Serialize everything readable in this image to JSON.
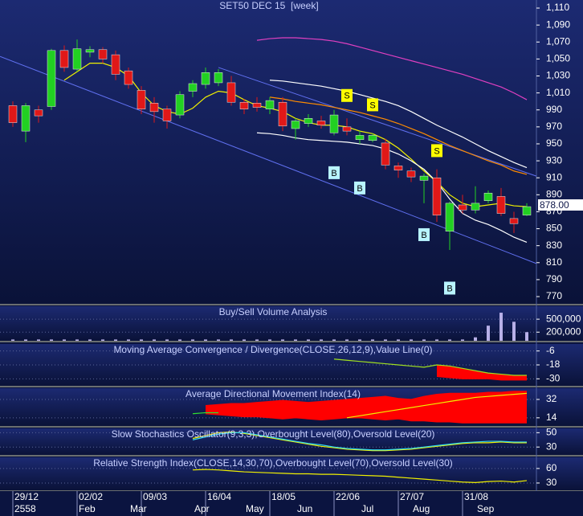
{
  "chart_data": [
    {
      "type": "candlestick",
      "title": "SET50 DEC 15  [week]",
      "categories": [
        "29/12",
        null,
        null,
        null,
        null,
        "02/02",
        null,
        null,
        null,
        null,
        "09/03",
        null,
        null,
        null,
        null,
        "16/04",
        null,
        null,
        null,
        null,
        "18/05",
        null,
        null,
        null,
        null,
        "22/06",
        null,
        null,
        null,
        null,
        "27/07",
        null,
        null,
        null,
        null,
        "31/08",
        null,
        null,
        null,
        null,
        null
      ],
      "months": [
        "2558",
        null,
        null,
        null,
        null,
        "Feb",
        null,
        null,
        null,
        "Mar",
        null,
        null,
        null,
        null,
        "Apr",
        null,
        null,
        null,
        "May",
        null,
        null,
        null,
        "Jun",
        null,
        null,
        null,
        null,
        "Jul",
        null,
        null,
        null,
        "Aug",
        null,
        null,
        null,
        null,
        "Sep",
        null,
        null,
        null,
        null
      ],
      "open": [
        995,
        965,
        990,
        994,
        1060,
        1038,
        1058,
        1061,
        1055,
        1036,
        1013,
        998,
        991,
        984,
        1012,
        1020,
        1022,
        1022,
        999,
        998,
        991,
        999,
        968,
        974,
        977,
        963,
        970,
        955,
        954,
        951,
        924,
        918,
        907,
        910,
        847,
        878,
        872,
        883,
        888,
        862,
        866
      ],
      "high": [
        1000,
        998,
        995,
        1062,
        1066,
        1073,
        1065,
        1064,
        1060,
        1040,
        1018,
        1005,
        995,
        1012,
        1025,
        1040,
        1038,
        1030,
        1003,
        1005,
        1005,
        1005,
        980,
        985,
        983,
        990,
        980,
        965,
        962,
        956,
        928,
        922,
        915,
        920,
        882,
        890,
        900,
        895,
        898,
        870,
        880
      ],
      "low": [
        970,
        952,
        975,
        990,
        1035,
        1035,
        1052,
        1045,
        1025,
        1015,
        985,
        975,
        968,
        980,
        1005,
        1015,
        1018,
        995,
        985,
        988,
        985,
        965,
        955,
        970,
        968,
        960,
        960,
        950,
        952,
        920,
        910,
        905,
        880,
        858,
        825,
        868,
        868,
        880,
        865,
        845,
        865
      ],
      "close": [
        975,
        995,
        983,
        1060,
        1040,
        1062,
        1061,
        1050,
        1032,
        1020,
        991,
        988,
        977,
        1008,
        1021,
        1034,
        1034,
        999,
        991,
        993,
        1001,
        971,
        977,
        980,
        972,
        984,
        965,
        960,
        960,
        925,
        919,
        911,
        912,
        866,
        880,
        872,
        880,
        892,
        868,
        856,
        876
      ],
      "up_color": "#22d022",
      "down_color": "#e01818",
      "ylim": [
        761.5,
        1119.5
      ],
      "yticks": [
        {
          "value": 1110,
          "label": "1,110"
        },
        {
          "value": 1090,
          "label": "1,090"
        },
        {
          "value": 1070,
          "label": "1,070"
        },
        {
          "value": 1050,
          "label": "1,050"
        },
        {
          "value": 1030,
          "label": "1,030"
        },
        {
          "value": 1010,
          "label": "1,010"
        },
        990,
        970,
        950,
        930,
        910,
        890,
        870,
        850,
        830,
        810,
        790,
        770
      ],
      "current": {
        "value": 878,
        "label": "878.00"
      },
      "series": [
        {
          "color": "#f0f000",
          "values": [
            null,
            null,
            null,
            null,
            1025,
            1035,
            1045,
            1045,
            1040,
            1030,
            1010,
            995,
            988,
            985,
            992,
            1005,
            1012,
            1010,
            1002,
            995,
            992,
            988,
            980,
            975,
            972,
            972,
            970,
            965,
            962,
            955,
            945,
            932,
            918,
            905,
            890,
            880,
            876,
            878,
            880,
            877,
            876
          ]
        },
        {
          "color": "#e040c0",
          "values": [
            null,
            null,
            null,
            null,
            null,
            null,
            null,
            null,
            null,
            null,
            null,
            null,
            null,
            null,
            null,
            null,
            null,
            null,
            null,
            1072,
            1074,
            1075,
            1075,
            1074,
            1073,
            1071,
            1068,
            1064,
            1060,
            1056,
            1052,
            1048,
            1044,
            1040,
            1036,
            1032,
            1027,
            1022,
            1017,
            1010,
            1002
          ]
        },
        {
          "color": "#ffffff",
          "values": [
            null,
            null,
            null,
            null,
            null,
            null,
            null,
            null,
            null,
            null,
            null,
            null,
            null,
            null,
            null,
            null,
            null,
            null,
            null,
            null,
            1025,
            1024,
            1022,
            1020,
            1018,
            1015,
            1012,
            1008,
            1004,
            1000,
            995,
            988,
            980,
            972,
            965,
            958,
            950,
            942,
            935,
            928,
            922
          ]
        },
        {
          "color": "#ff8c00",
          "values": [
            null,
            null,
            null,
            null,
            null,
            null,
            null,
            null,
            null,
            null,
            null,
            null,
            null,
            null,
            null,
            null,
            null,
            null,
            null,
            null,
            1005,
            1003,
            1000,
            998,
            996,
            993,
            990,
            987,
            983,
            979,
            974,
            968,
            962,
            955,
            948,
            942,
            936,
            930,
            925,
            918,
            914
          ]
        },
        {
          "color": "#ffffff",
          "values": [
            null,
            null,
            null,
            null,
            null,
            null,
            null,
            null,
            null,
            null,
            null,
            null,
            null,
            null,
            null,
            null,
            null,
            null,
            null,
            963,
            962,
            960,
            957,
            955,
            954,
            953,
            952,
            950,
            948,
            944,
            938,
            930,
            920,
            905,
            885,
            868,
            860,
            855,
            848,
            840,
            834
          ]
        }
      ],
      "trendlines": [
        {
          "color": "#6070f0",
          "x": [
            -1,
            40.75
          ],
          "values": [
            1053,
            809
          ]
        },
        {
          "color": "#6070f0",
          "x": [
            16,
            40.75
          ],
          "values": [
            1040,
            912
          ]
        }
      ],
      "signals": [
        {
          "text": "S",
          "x": 26,
          "y": 1007
        },
        {
          "text": "S",
          "x": 28,
          "y": 996
        },
        {
          "text": "S",
          "x": 33,
          "y": 942
        },
        {
          "text": "B",
          "x": 25,
          "y": 916
        },
        {
          "text": "B",
          "x": 27,
          "y": 898
        },
        {
          "text": "B",
          "x": 32,
          "y": 843
        },
        {
          "text": "B",
          "x": 34,
          "y": 780
        }
      ],
      "signal_colors": {
        "S": "#ffff00",
        "B": "#b8f4ff"
      }
    },
    {
      "type": "bar",
      "title": "Buy/Sell Volume Analysis",
      "values": [
        30000,
        30000,
        30000,
        30000,
        30000,
        30000,
        30000,
        30000,
        30000,
        30000,
        30000,
        30000,
        30000,
        30000,
        30000,
        30000,
        30000,
        30000,
        30000,
        30000,
        30000,
        30000,
        30000,
        30000,
        30000,
        30000,
        30000,
        30000,
        30000,
        30000,
        30000,
        30000,
        30000,
        30000,
        30000,
        30000,
        80000,
        350000,
        650000,
        440000,
        200000
      ],
      "color": "#b8b0e8",
      "ylim": [
        0,
        800000
      ],
      "yticks": [
        {
          "value": 500000,
          "label": "500,000"
        },
        {
          "value": 200000,
          "label": "200,000"
        }
      ]
    },
    {
      "type": "line",
      "title": "Moving Average Convergence / Divergence(CLOSE,26,12,9),Value Line(0)",
      "ylim": [
        -36,
        0
      ],
      "yticks": [
        -6,
        -18,
        -30
      ],
      "band_color": "#ff0000",
      "series": [
        {
          "color": "#a0e020",
          "values": [
            null,
            null,
            null,
            null,
            null,
            null,
            null,
            null,
            null,
            null,
            null,
            null,
            null,
            null,
            null,
            null,
            null,
            null,
            null,
            null,
            null,
            null,
            null,
            null,
            null,
            -13,
            -14,
            -15,
            -16,
            -17,
            -18,
            -19,
            -20,
            -18,
            -19,
            -21,
            -23,
            -25,
            -26,
            -27,
            -27
          ]
        },
        {
          "color": "#ff0000",
          "values": [
            null,
            null,
            null,
            null,
            null,
            null,
            null,
            null,
            null,
            null,
            null,
            null,
            null,
            null,
            null,
            null,
            null,
            null,
            null,
            null,
            null,
            null,
            null,
            null,
            null,
            null,
            null,
            null,
            null,
            null,
            null,
            null,
            null,
            -28,
            -29,
            -30,
            -30,
            -30,
            -31,
            -31,
            -31
          ]
        }
      ]
    },
    {
      "type": "line",
      "title": "Average Directional Movement Index(14)",
      "ylim": [
        6,
        43
      ],
      "yticks": [
        32,
        14
      ],
      "band_color": "#ff0000",
      "series": [
        {
          "color": "#ff0000",
          "values": [
            null,
            null,
            null,
            null,
            null,
            null,
            null,
            null,
            null,
            null,
            null,
            null,
            null,
            null,
            null,
            26,
            27,
            28,
            28,
            29,
            30,
            31,
            30,
            29,
            30,
            31,
            32,
            33,
            34,
            35,
            33,
            32,
            35,
            37,
            38,
            38,
            38,
            39,
            39,
            40,
            40
          ]
        },
        {
          "color": "#ff0000",
          "values": [
            null,
            null,
            null,
            null,
            null,
            null,
            null,
            null,
            null,
            null,
            null,
            null,
            null,
            null,
            null,
            18,
            17,
            16,
            15,
            15,
            14,
            13,
            14,
            13,
            12,
            13,
            14,
            14,
            13,
            12,
            13,
            11,
            11,
            10,
            10,
            9,
            9,
            9,
            9,
            9,
            9
          ]
        },
        {
          "color": "#f0f000",
          "values": [
            null,
            null,
            null,
            null,
            null,
            null,
            null,
            null,
            null,
            null,
            null,
            null,
            null,
            null,
            null,
            null,
            null,
            null,
            null,
            null,
            null,
            null,
            null,
            null,
            null,
            null,
            14,
            16,
            18,
            20,
            22,
            24,
            26,
            28,
            30,
            32,
            34,
            35,
            36,
            37,
            38
          ]
        },
        {
          "color": "#30e030",
          "values": [
            null,
            null,
            null,
            null,
            null,
            null,
            null,
            null,
            null,
            null,
            null,
            null,
            null,
            null,
            18,
            19,
            19,
            null,
            null,
            null,
            null,
            null,
            null,
            null,
            null,
            null,
            null,
            null,
            null,
            null,
            null,
            null,
            null,
            null,
            null,
            null,
            null,
            null,
            null,
            null,
            null
          ]
        }
      ]
    },
    {
      "type": "line",
      "title": "Slow Stochastics Oscillator(9,3,3),Overbought Level(80),Oversold Level(20)",
      "ylim": [
        19,
        56
      ],
      "yticks": [
        50,
        30
      ],
      "series": [
        {
          "color": "#f0f000",
          "values": [
            null,
            null,
            null,
            null,
            null,
            null,
            null,
            null,
            null,
            null,
            null,
            null,
            null,
            null,
            42,
            46,
            50,
            51,
            49,
            46,
            43,
            40,
            37,
            34,
            31,
            29,
            27,
            26,
            25,
            25,
            26,
            27,
            29,
            31,
            33,
            35,
            36,
            36,
            37,
            36,
            36
          ]
        },
        {
          "color": "#30d8f0",
          "values": [
            null,
            null,
            null,
            null,
            null,
            null,
            null,
            null,
            null,
            null,
            null,
            null,
            null,
            null,
            40,
            44,
            48,
            50,
            50,
            47,
            44,
            41,
            38,
            35,
            33,
            30,
            28,
            27,
            26,
            26,
            27,
            28,
            30,
            32,
            34,
            36,
            37,
            38,
            38,
            37,
            37
          ]
        }
      ]
    },
    {
      "type": "line",
      "title": "Relative Strength Index(CLOSE,14,30,70),Overbought Level(70),Oversold Level(30)",
      "ylim": [
        15,
        83
      ],
      "yticks": [
        60,
        30
      ],
      "series": [
        {
          "color": "#f0f000",
          "values": [
            null,
            null,
            null,
            null,
            null,
            null,
            null,
            null,
            null,
            null,
            null,
            null,
            null,
            null,
            57,
            58,
            57,
            55,
            53,
            52,
            51,
            50,
            49,
            49,
            48,
            48,
            47,
            46,
            45,
            44,
            42,
            40,
            38,
            36,
            34,
            32,
            31,
            33,
            34,
            32,
            35
          ]
        }
      ]
    }
  ]
}
